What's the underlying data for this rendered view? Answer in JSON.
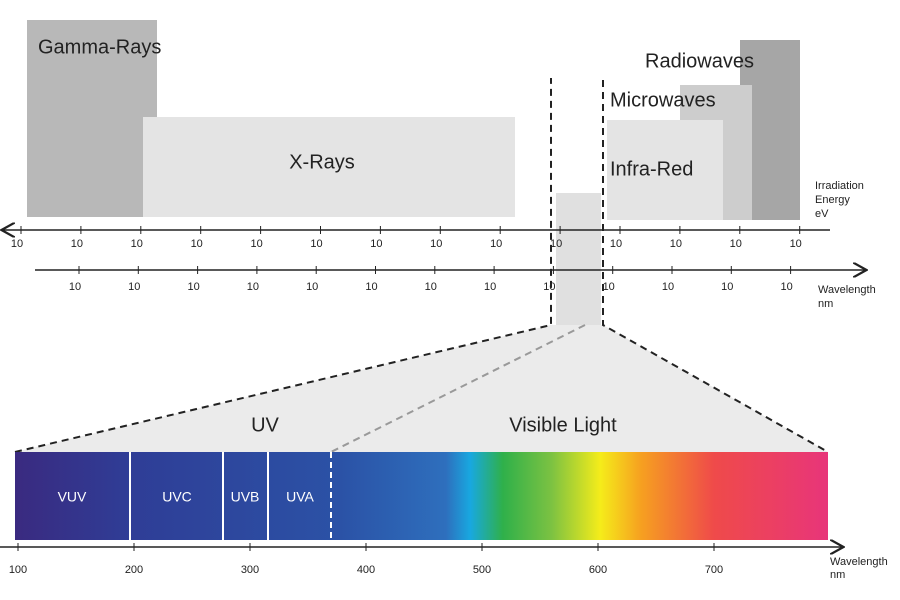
{
  "regions": {
    "gamma": "Gamma-Rays",
    "xray": "X-Rays",
    "radio": "Radiowaves",
    "micro": "Microwaves",
    "infrared": "Infra-Red"
  },
  "energy_axis": {
    "label": [
      "Irradiation",
      "Energy",
      "eV"
    ],
    "ticks": [
      "10",
      "10",
      "10",
      "10",
      "10",
      "10",
      "10",
      "10",
      "10",
      "10",
      "10",
      "10",
      "10",
      "10"
    ]
  },
  "wavelength_axis": {
    "label": [
      "Wavelength",
      "nm"
    ],
    "ticks": [
      "10",
      "10",
      "10",
      "10",
      "10",
      "10",
      "10",
      "10",
      "10",
      "10",
      "10",
      "10",
      "10"
    ]
  },
  "zoom": {
    "uv": "UV",
    "visible": "Visible Light",
    "bands": [
      "VUV",
      "UVC",
      "UVB",
      "UVA"
    ]
  },
  "spectrum_axis": {
    "label": [
      "Wavelength",
      "nm"
    ],
    "ticks": [
      100,
      200,
      300,
      400,
      500,
      600,
      700
    ]
  }
}
